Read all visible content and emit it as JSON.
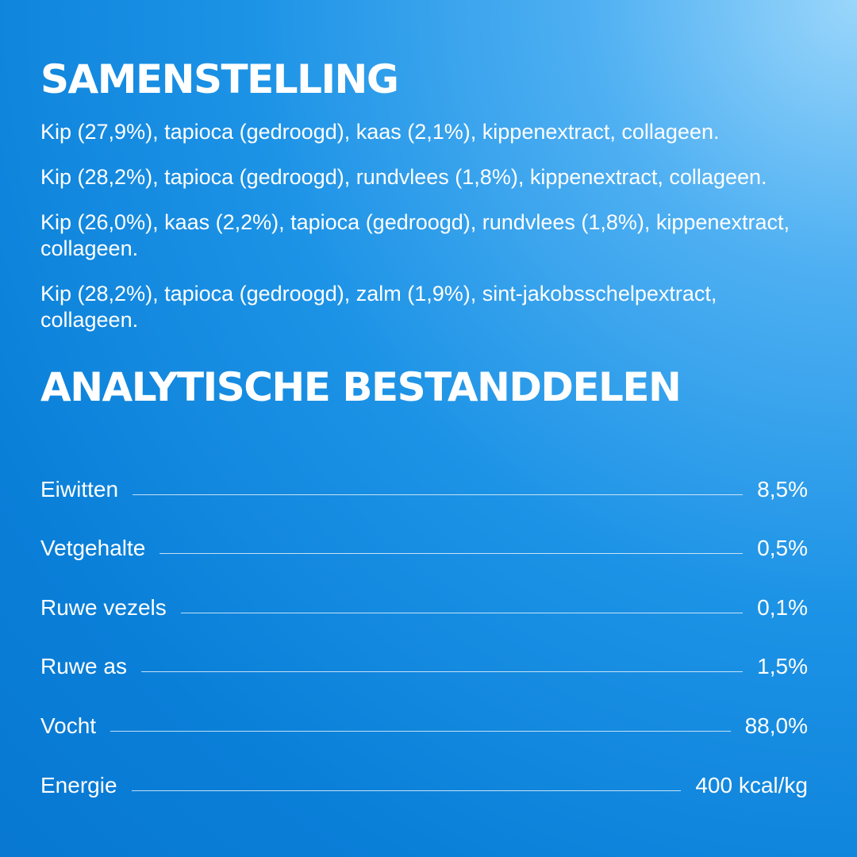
{
  "composition": {
    "title": "SAMENSTELLING",
    "paragraphs": [
      "Kip (27,9%), tapioca (gedroogd), kaas (2,1%), kippenextract, collageen.",
      "Kip (28,2%), tapioca (gedroogd), rundvlees (1,8%), kippenextract, collageen.",
      "Kip (26,0%), kaas (2,2%), tapioca (gedroogd), rundvlees (1,8%), kippenextract, collageen.",
      "Kip (28,2%), tapioca (gedroogd), zalm (1,9%), sint-jakobsschelpextract, collageen."
    ]
  },
  "analysis": {
    "title": "ANALYTISCHE BESTANDDELEN",
    "rows": [
      {
        "label": "Eiwitten",
        "value": "8,5%"
      },
      {
        "label": "Vetgehalte",
        "value": "0,5%"
      },
      {
        "label": "Ruwe vezels",
        "value": "0,1%"
      },
      {
        "label": "Ruwe as",
        "value": "1,5%"
      },
      {
        "label": "Vocht",
        "value": "88,0%"
      },
      {
        "label": "Energie",
        "value": "400 kcal/kg"
      }
    ]
  }
}
